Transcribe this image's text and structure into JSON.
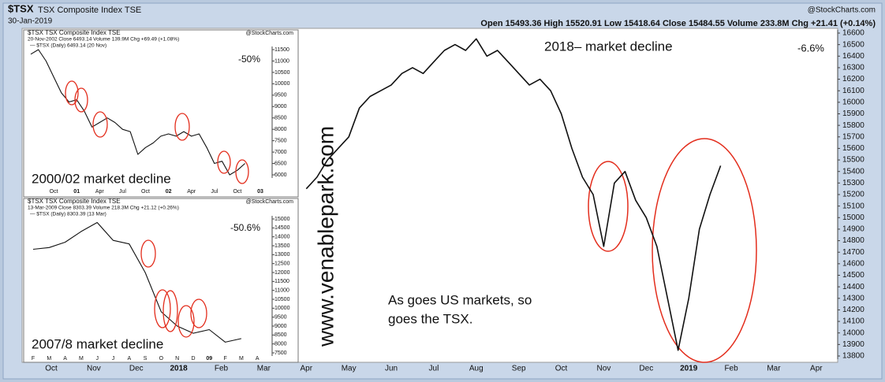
{
  "header": {
    "symbol": "$TSX",
    "name": "TSX Composite Index TSE",
    "date": "30-Jan-2019",
    "source": "@StockCharts.com",
    "quote": "Open 15493.36  High 15520.91  Low 15418.64  Close 15484.55  Volume 233.8M  Chg +21.41 (+0.14%)"
  },
  "watermark": "www.venablepark.com",
  "chart_data": [
    {
      "type": "line",
      "title": "2018– market decline",
      "change_label": "-6.6%",
      "annotation": [
        "As goes US markets, so",
        "goes the TSX."
      ],
      "color": "#111111",
      "categories": [
        "Oct",
        null,
        null,
        null,
        "Nov",
        null,
        null,
        null,
        "Dec",
        null,
        null,
        null,
        "2018",
        null,
        null,
        null,
        "Feb",
        null,
        null,
        null,
        "Mar",
        null,
        null,
        null,
        "Apr",
        null,
        null,
        null,
        "May",
        null,
        null,
        null,
        "Jun",
        null,
        null,
        null,
        "Jul",
        null,
        null,
        null,
        "Aug",
        null,
        null,
        null,
        "Sep",
        null,
        null,
        null,
        "Oct",
        null,
        null,
        null,
        "Nov",
        null,
        null,
        null,
        "Dec",
        null,
        null,
        null,
        "2019",
        null,
        null,
        null,
        "Feb",
        null,
        null,
        null,
        "Mar",
        null,
        null,
        null,
        "Apr"
      ],
      "values": [
        null,
        null,
        null,
        null,
        null,
        null,
        null,
        null,
        null,
        null,
        null,
        null,
        null,
        null,
        null,
        null,
        null,
        null,
        null,
        null,
        null,
        null,
        null,
        null,
        15250,
        15350,
        15500,
        15600,
        15700,
        15950,
        16050,
        16100,
        16150,
        16250,
        16300,
        16250,
        16350,
        16450,
        16500,
        16450,
        16550,
        16400,
        16450,
        16350,
        16250,
        16150,
        16200,
        16100,
        15900,
        15600,
        15350,
        15200,
        14750,
        15300,
        15400,
        15150,
        15000,
        14750,
        14300,
        13850,
        14300,
        14900,
        15200,
        15450,
        null,
        null,
        null,
        null,
        null,
        null,
        null,
        null,
        null
      ],
      "ylim": [
        13800,
        16600
      ],
      "yticks": [
        13800,
        13900,
        14000,
        14100,
        14200,
        14300,
        14400,
        14500,
        14600,
        14700,
        14800,
        14900,
        15000,
        15100,
        15200,
        15300,
        15400,
        15500,
        15600,
        15700,
        15800,
        15900,
        16000,
        16100,
        16200,
        16300,
        16400,
        16500,
        16600
      ]
    },
    {
      "type": "line",
      "title": "$TSX TSX Composite Index TSE",
      "info": "20-Nov-2002   Close 6493.14  Volume 139.9M  Chg +69.49 (+1.08%)",
      "legend": "— $TSX (Daily) 6493.14 (20 Nov)",
      "source": "@StockCharts.com",
      "change_label": "-50%",
      "caption": "2000/02 market decline",
      "color": "#111111",
      "categories": [
        null,
        null,
        null,
        "Oct",
        null,
        null,
        "01",
        null,
        null,
        "Apr",
        null,
        null,
        "Jul",
        null,
        null,
        "Oct",
        null,
        null,
        "02",
        null,
        null,
        "Apr",
        null,
        null,
        "Jul",
        null,
        null,
        "Oct",
        null,
        null,
        "03"
      ],
      "values": [
        11300,
        11500,
        11000,
        10300,
        9600,
        9200,
        9300,
        8800,
        8100,
        8300,
        8500,
        8300,
        8000,
        7900,
        6900,
        7200,
        7400,
        7700,
        7800,
        7700,
        7900,
        7700,
        7800,
        7200,
        6500,
        6600,
        6000,
        6200,
        6500,
        null,
        null
      ],
      "ylim": [
        6000,
        11500
      ],
      "yticks": [
        6000,
        6500,
        7000,
        7500,
        8000,
        8500,
        9000,
        9500,
        10000,
        10500,
        11000,
        11500
      ]
    },
    {
      "type": "line",
      "title": "$TSX TSX Composite Index TSE",
      "info": "13-Mar-2009   Close 8303.39  Volume 218.3M  Chg +21.12 (+0.26%)",
      "legend": "— $TSX (Daily) 8303.39 (13 Mar)",
      "source": "@StockCharts.com",
      "change_label": "-50.6%",
      "caption": "2007/8 market decline",
      "color": "#111111",
      "categories": [
        "F",
        "M",
        "A",
        "M",
        "J",
        "J",
        "A",
        "S",
        "O",
        "N",
        "D",
        "09",
        "F",
        "M",
        "A"
      ],
      "values": [
        13300,
        13400,
        13700,
        14300,
        14800,
        13800,
        13600,
        12000,
        9800,
        9000,
        8600,
        8800,
        8100,
        8300,
        null
      ],
      "ylim": [
        7500,
        15000
      ],
      "yticks": [
        7500,
        8000,
        8500,
        9000,
        9500,
        10000,
        10500,
        11000,
        11500,
        12000,
        12500,
        13000,
        13500,
        14000,
        14500,
        15000
      ]
    }
  ]
}
